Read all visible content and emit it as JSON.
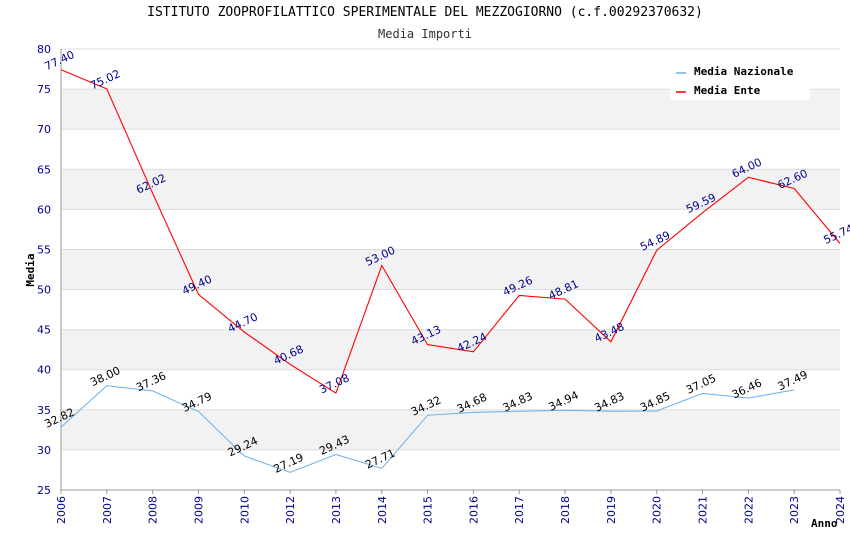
{
  "chart_data": {
    "type": "line",
    "title": "ISTITUTO ZOOPROFILATTICO SPERIMENTALE DEL MEZZOGIORNO (c.f.00292370632)",
    "subtitle": "Media Importi",
    "xlabel": "Anno",
    "ylabel": "Media",
    "ylim": [
      25,
      80
    ],
    "yticks": [
      "25",
      "30",
      "35",
      "40",
      "45",
      "50",
      "55",
      "60",
      "65",
      "70",
      "75",
      "80"
    ],
    "categories": [
      "2006",
      "2007",
      "2008",
      "2009",
      "2010",
      "2012",
      "2013",
      "2014",
      "2015",
      "2016",
      "2017",
      "2018",
      "2019",
      "2020",
      "2021",
      "2022",
      "2023",
      "2024"
    ],
    "legend_position": "top-right",
    "grid": true,
    "series": [
      {
        "name": "Media Nazionale",
        "color": "#6aaee8",
        "values": [
          32.82,
          38.0,
          37.36,
          34.79,
          29.24,
          27.19,
          29.43,
          27.71,
          34.32,
          34.68,
          34.83,
          34.94,
          34.83,
          34.85,
          37.05,
          36.46,
          37.49,
          null
        ],
        "labels": [
          "32.82",
          "38.00",
          "37.36",
          "34.79",
          "29.24",
          "27.19",
          "29.43",
          "27.71",
          "34.32",
          "34.68",
          "34.83",
          "34.94",
          "34.83",
          "34.85",
          "37.05",
          "36.46",
          "37.49",
          ""
        ]
      },
      {
        "name": "Media Ente",
        "color": "#ff0000",
        "values": [
          77.4,
          75.02,
          62.02,
          49.4,
          44.7,
          40.68,
          37.08,
          53.0,
          43.13,
          42.24,
          49.26,
          48.81,
          43.48,
          54.89,
          59.59,
          64.0,
          62.6,
          55.74
        ],
        "labels": [
          "77.40",
          "75.02",
          "62.02",
          "49.40",
          "44.70",
          "40.68",
          "37.08",
          "53.00",
          "43.13",
          "42.24",
          "49.26",
          "48.81",
          "43.48",
          "54.89",
          "59.59",
          "64.00",
          "62.60",
          "55.74"
        ]
      }
    ]
  }
}
